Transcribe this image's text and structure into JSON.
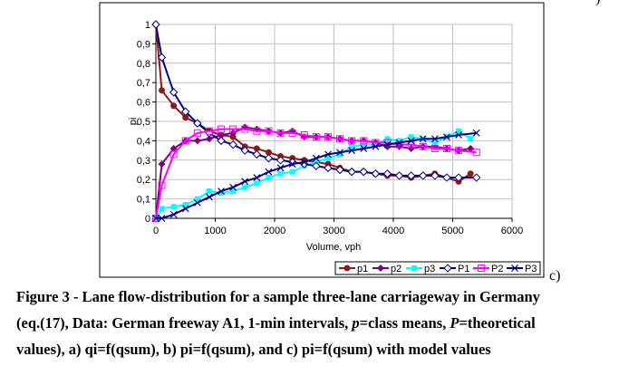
{
  "corner_fragment": ")",
  "panel_label": "c)",
  "caption": {
    "line1": "Figure 3 - Lane flow-distribution for a sample three-lane carriageway in Germany",
    "line2a": "(eq.(17), Data: German freeway A1, 1-min intervals, ",
    "line2_p": "p",
    "line2b": "=class means, ",
    "line2_P": "P",
    "line2c": "=theoretical",
    "line3": "values), a) qi=f(qsum), b) pi=f(qsum), and c)  pi=f(qsum) with model values"
  },
  "chart_data": {
    "type": "line",
    "title": "",
    "xlabel": "Volume, vph",
    "ylabel": "pi",
    "xlim": [
      0,
      6000
    ],
    "ylim": [
      0,
      1
    ],
    "xticks": [
      "0",
      "1000",
      "2000",
      "3000",
      "4000",
      "5000",
      "6000"
    ],
    "yticks": [
      "0",
      "0,1",
      "0,2",
      "0,3",
      "0,4",
      "0,5",
      "0,6",
      "0,7",
      "0,8",
      "0,9",
      "1"
    ],
    "grid": true,
    "legend_position": "bottom-right",
    "series": [
      {
        "name": "p1",
        "color": "#8B1A1A",
        "marker": "circle",
        "x": [
          0,
          100,
          300,
          500,
          700,
          900,
          1100,
          1300,
          1500,
          1700,
          1900,
          2100,
          2300,
          2500,
          2700,
          2900,
          3100,
          3300,
          3500,
          3700,
          3900,
          4100,
          4300,
          4500,
          4700,
          4900,
          5100,
          5300
        ],
        "y": [
          1,
          0.66,
          0.58,
          0.52,
          0.49,
          0.45,
          0.43,
          0.42,
          0.37,
          0.36,
          0.34,
          0.32,
          0.31,
          0.3,
          0.29,
          0.28,
          0.26,
          0.24,
          0.24,
          0.23,
          0.22,
          0.22,
          0.21,
          0.22,
          0.23,
          0.21,
          0.19,
          0.23
        ]
      },
      {
        "name": "p2",
        "color": "#800080",
        "marker": "diamond",
        "x": [
          0,
          100,
          300,
          500,
          700,
          900,
          1100,
          1300,
          1500,
          1700,
          1900,
          2100,
          2300,
          2500,
          2700,
          2900,
          3100,
          3300,
          3500,
          3700,
          3900,
          4100,
          4300,
          4500,
          4700,
          4900,
          5100,
          5300
        ],
        "y": [
          0,
          0.28,
          0.36,
          0.4,
          0.4,
          0.41,
          0.43,
          0.44,
          0.47,
          0.46,
          0.45,
          0.44,
          0.45,
          0.42,
          0.42,
          0.42,
          0.41,
          0.4,
          0.4,
          0.39,
          0.37,
          0.37,
          0.36,
          0.37,
          0.37,
          0.36,
          0.35,
          0.36
        ]
      },
      {
        "name": "p3",
        "color": "#00FFFF",
        "marker": "square",
        "x": [
          0,
          100,
          300,
          500,
          700,
          900,
          1100,
          1300,
          1500,
          1700,
          1900,
          2100,
          2300,
          2500,
          2700,
          2900,
          3100,
          3300,
          3500,
          3700,
          3900,
          4100,
          4300,
          4500,
          4700,
          4900,
          5100,
          5300
        ],
        "y": [
          0,
          0.05,
          0.06,
          0.07,
          0.1,
          0.14,
          0.13,
          0.14,
          0.16,
          0.18,
          0.21,
          0.23,
          0.24,
          0.27,
          0.29,
          0.31,
          0.33,
          0.37,
          0.38,
          0.38,
          0.41,
          0.4,
          0.42,
          0.41,
          0.39,
          0.42,
          0.45,
          0.41
        ]
      },
      {
        "name": "P1",
        "color": "#000080",
        "marker": "open-diamond",
        "x": [
          0,
          100,
          300,
          500,
          700,
          900,
          1100,
          1300,
          1500,
          1700,
          1900,
          2100,
          2300,
          2500,
          2700,
          2900,
          3100,
          3300,
          3500,
          3700,
          3900,
          4100,
          4300,
          4500,
          4700,
          4900,
          5100,
          5400
        ],
        "y": [
          1,
          0.83,
          0.65,
          0.55,
          0.49,
          0.44,
          0.4,
          0.38,
          0.35,
          0.33,
          0.31,
          0.3,
          0.29,
          0.28,
          0.27,
          0.26,
          0.25,
          0.24,
          0.24,
          0.23,
          0.23,
          0.22,
          0.22,
          0.22,
          0.22,
          0.21,
          0.21,
          0.21
        ]
      },
      {
        "name": "P2",
        "color": "#FF00FF",
        "marker": "open-square",
        "x": [
          0,
          100,
          300,
          500,
          700,
          900,
          1100,
          1300,
          1500,
          1700,
          1900,
          2100,
          2300,
          2500,
          2700,
          2900,
          3100,
          3300,
          3500,
          3700,
          3900,
          4100,
          4300,
          4500,
          4700,
          4900,
          5100,
          5400
        ],
        "y": [
          0,
          0.17,
          0.33,
          0.4,
          0.44,
          0.45,
          0.46,
          0.46,
          0.46,
          0.45,
          0.45,
          0.44,
          0.44,
          0.43,
          0.42,
          0.42,
          0.41,
          0.4,
          0.4,
          0.39,
          0.39,
          0.38,
          0.38,
          0.37,
          0.36,
          0.36,
          0.35,
          0.34
        ]
      },
      {
        "name": "P3",
        "color": "#000080",
        "marker": "x",
        "x": [
          0,
          100,
          300,
          500,
          700,
          900,
          1100,
          1300,
          1500,
          1700,
          1900,
          2100,
          2300,
          2500,
          2700,
          2900,
          3100,
          3300,
          3500,
          3700,
          3900,
          4100,
          4300,
          4500,
          4700,
          4900,
          5100,
          5400
        ],
        "y": [
          0,
          0,
          0.02,
          0.05,
          0.08,
          0.11,
          0.14,
          0.16,
          0.19,
          0.21,
          0.24,
          0.26,
          0.28,
          0.29,
          0.31,
          0.33,
          0.34,
          0.35,
          0.36,
          0.37,
          0.38,
          0.39,
          0.4,
          0.41,
          0.41,
          0.42,
          0.43,
          0.44
        ]
      }
    ]
  }
}
